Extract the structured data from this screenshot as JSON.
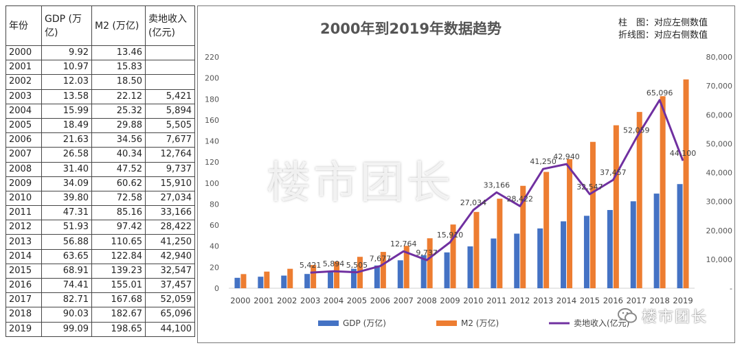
{
  "table": {
    "headers": [
      "年份",
      "GDP (万亿)",
      "M2 (万亿)",
      "卖地收入(亿元)"
    ],
    "rows": [
      [
        "2000",
        "9.92",
        "13.46",
        ""
      ],
      [
        "2001",
        "10.97",
        "15.83",
        ""
      ],
      [
        "2002",
        "12.03",
        "18.50",
        ""
      ],
      [
        "2003",
        "13.58",
        "22.12",
        "5,421"
      ],
      [
        "2004",
        "15.99",
        "25.32",
        "5,894"
      ],
      [
        "2005",
        "18.49",
        "29.88",
        "5,505"
      ],
      [
        "2006",
        "21.63",
        "34.56",
        "7,677"
      ],
      [
        "2007",
        "26.58",
        "40.34",
        "12,764"
      ],
      [
        "2008",
        "31.40",
        "47.52",
        "9,737"
      ],
      [
        "2009",
        "34.09",
        "60.62",
        "15,910"
      ],
      [
        "2010",
        "39.80",
        "72.58",
        "27,034"
      ],
      [
        "2011",
        "47.31",
        "85.16",
        "33,166"
      ],
      [
        "2012",
        "51.93",
        "97.42",
        "28,422"
      ],
      [
        "2013",
        "56.88",
        "110.65",
        "41,250"
      ],
      [
        "2014",
        "63.65",
        "122.84",
        "42,940"
      ],
      [
        "2015",
        "68.91",
        "139.23",
        "32,547"
      ],
      [
        "2016",
        "74.41",
        "155.01",
        "37,457"
      ],
      [
        "2017",
        "82.71",
        "167.68",
        "52,059"
      ],
      [
        "2018",
        "90.03",
        "182.67",
        "65,096"
      ],
      [
        "2019",
        "99.09",
        "198.65",
        "44,100"
      ]
    ]
  },
  "chart_data": {
    "type": "bar",
    "title": "2000年到2019年数据趋势",
    "annotations": [
      "柱　图：对应左侧数值",
      "折线图：对应右侧数值"
    ],
    "categories": [
      "2000",
      "2001",
      "2002",
      "2003",
      "2004",
      "2005",
      "2006",
      "2007",
      "2008",
      "2009",
      "2010",
      "2011",
      "2012",
      "2013",
      "2014",
      "2015",
      "2016",
      "2017",
      "2018",
      "2019"
    ],
    "series": [
      {
        "name": "GDP (万亿)",
        "type": "bar",
        "axis": "left",
        "color": "#4472C4",
        "values": [
          9.92,
          10.97,
          12.03,
          13.58,
          15.99,
          18.49,
          21.63,
          26.58,
          31.4,
          34.09,
          39.8,
          47.31,
          51.93,
          56.88,
          63.65,
          68.91,
          74.41,
          82.71,
          90.03,
          99.09
        ]
      },
      {
        "name": "M2 (万亿)",
        "type": "bar",
        "axis": "left",
        "color": "#ED7D31",
        "values": [
          13.46,
          15.83,
          18.5,
          22.12,
          25.32,
          29.88,
          34.56,
          40.34,
          47.52,
          60.62,
          72.58,
          85.16,
          97.42,
          110.65,
          122.84,
          139.23,
          155.01,
          167.68,
          182.67,
          198.65
        ]
      },
      {
        "name": "卖地收入(亿元)",
        "type": "line",
        "axis": "right",
        "color": "#7030A0",
        "values": [
          null,
          null,
          null,
          5421,
          5894,
          5505,
          7677,
          12764,
          9737,
          15910,
          27034,
          33166,
          28422,
          41250,
          42940,
          32547,
          37457,
          52059,
          65096,
          44100
        ],
        "labels": [
          "",
          "",
          "",
          "5,421",
          "5,894",
          "5,505",
          "7,677",
          "12,764",
          "9,737",
          "15,910",
          "27,034",
          "33,166",
          "28,422",
          "41,250",
          "42,940",
          "32,547",
          "37,457",
          "52,059",
          "65,096",
          "44,100"
        ]
      }
    ],
    "ylim_left": [
      0,
      220
    ],
    "yticks_left": [
      "0",
      "20",
      "40",
      "60",
      "80",
      "100",
      "120",
      "140",
      "160",
      "180",
      "200",
      "220"
    ],
    "ylim_right": [
      0,
      80000
    ],
    "yticks_right": [
      "-",
      "10,000",
      "20,000",
      "30,000",
      "40,000",
      "50,000",
      "60,000",
      "70,000",
      "80,000"
    ],
    "legend": [
      "GDP (万亿)",
      "M2 (万亿)",
      "卖地收入(亿元)"
    ],
    "legend_position": "bottom",
    "grid": false
  },
  "watermark": {
    "center": "楼市团长",
    "corner": "楼市团长"
  }
}
